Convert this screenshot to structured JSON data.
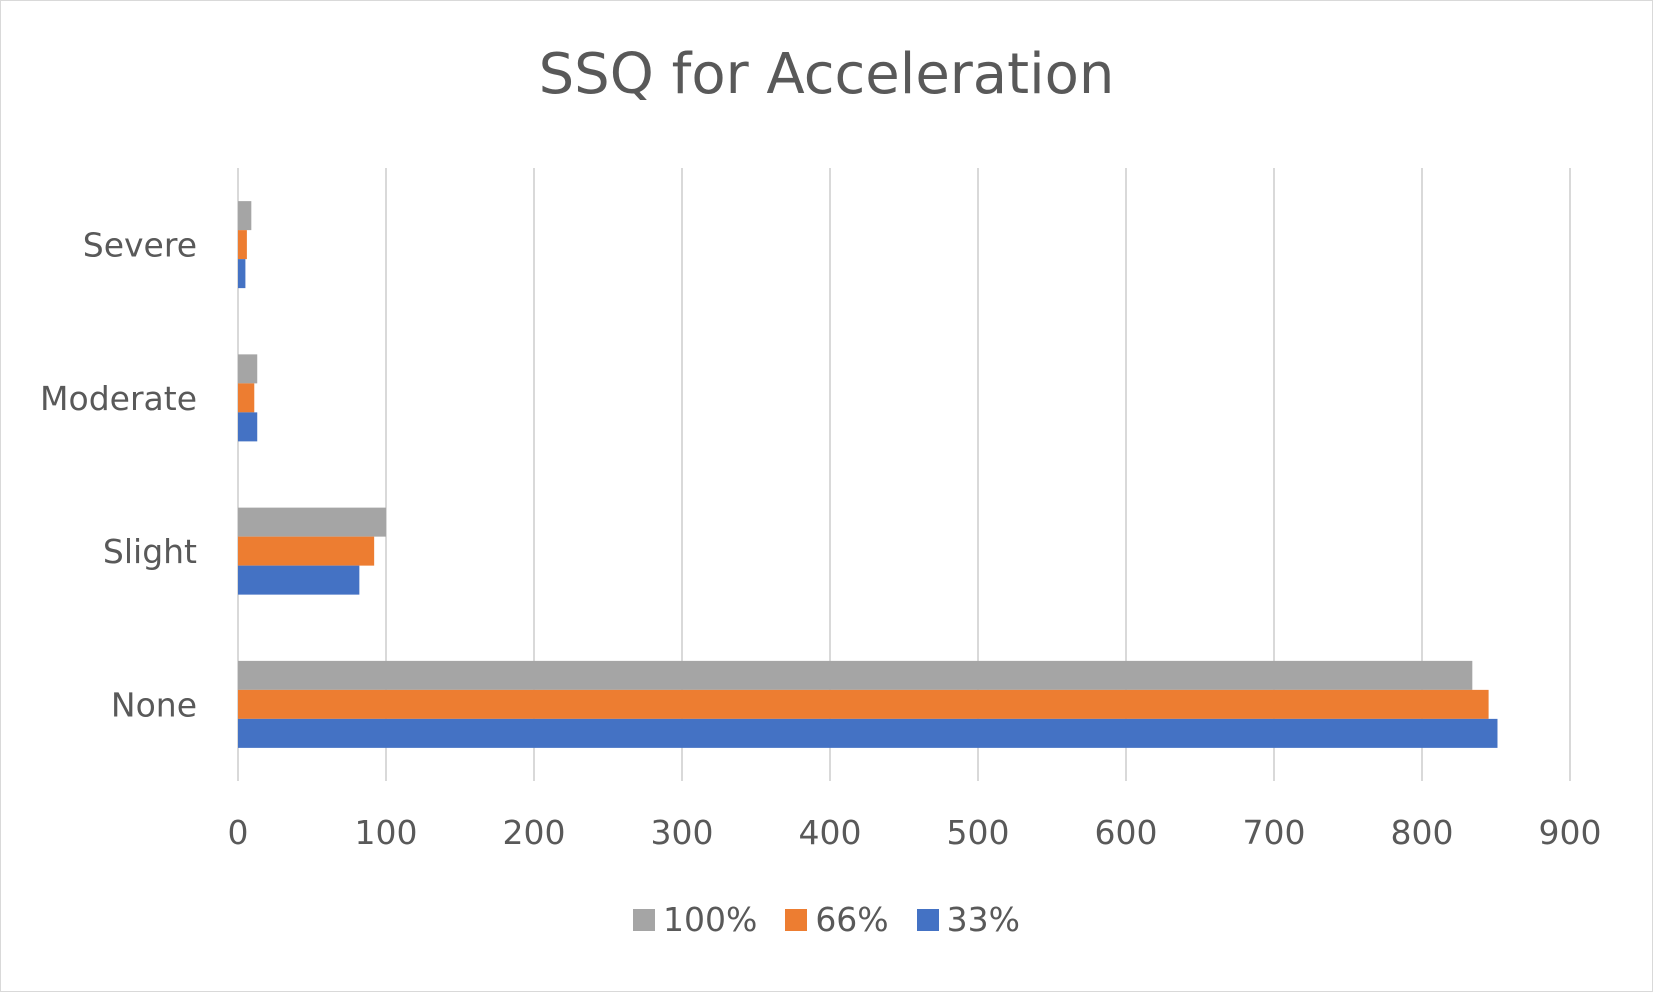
{
  "chart_data": {
    "type": "bar",
    "orientation": "horizontal",
    "title": "SSQ for Acceleration",
    "categories": [
      "None",
      "Slight",
      "Moderate",
      "Severe"
    ],
    "series": [
      {
        "name": "33%",
        "color": "#4472c4",
        "values": [
          851,
          82,
          13,
          5
        ]
      },
      {
        "name": "66%",
        "color": "#ed7d31",
        "values": [
          845,
          92,
          11,
          6
        ]
      },
      {
        "name": "100%",
        "color": "#a5a5a5",
        "values": [
          834,
          100,
          13,
          9
        ]
      }
    ],
    "xlim": [
      0,
      900
    ],
    "xticks": [
      "0",
      "100",
      "200",
      "300",
      "400",
      "500",
      "600",
      "700",
      "800",
      "900"
    ],
    "grid": "vertical",
    "legend_position": "bottom",
    "legend_order": [
      "100%",
      "66%",
      "33%"
    ]
  }
}
